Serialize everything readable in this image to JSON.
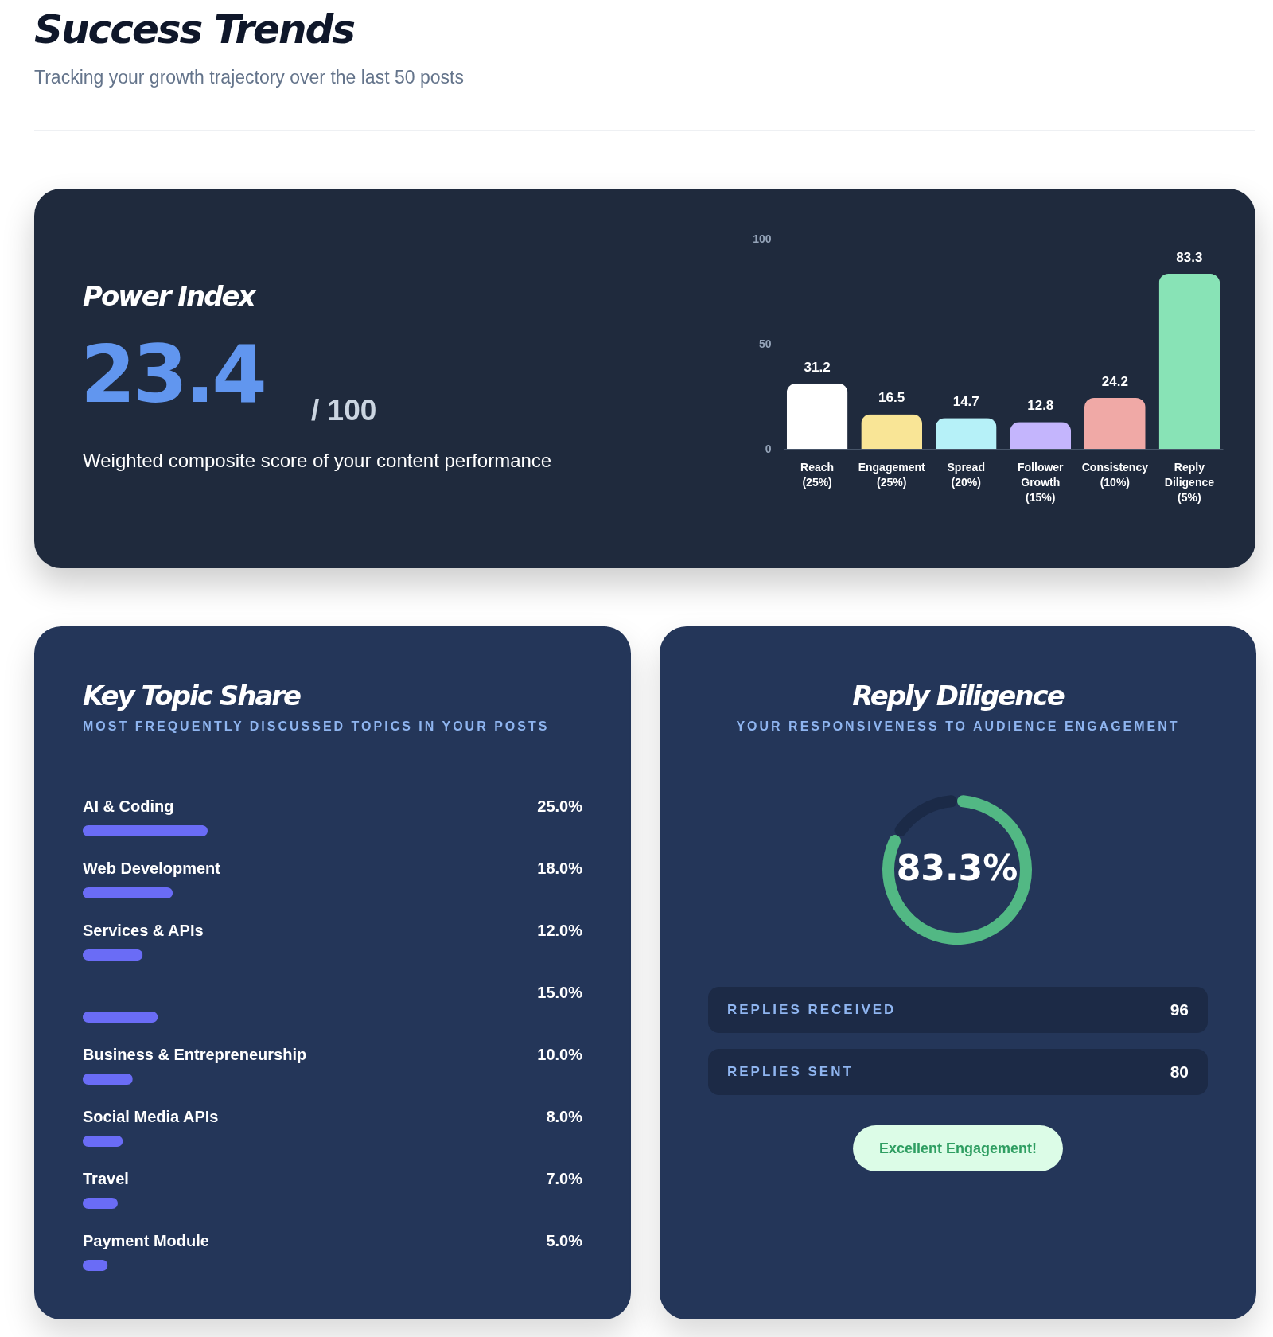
{
  "chart_data": [
    {
      "type": "other",
      "title": "Success Trends",
      "subtitle": "Tracking your growth trajectory over the last 50 posts"
    },
    {
      "type": "other",
      "title": "Power Index",
      "annotations": [
        "23.4",
        "/ 100",
        "Weighted composite score of your content performance"
      ]
    },
    {
      "type": "bar",
      "categories": [
        "Reach (25%)",
        "Engagement (25%)",
        "Spread (20%)",
        "Follower Growth (15%)",
        "Consistency (10%)",
        "Reply Diligence (5%)"
      ],
      "values": [
        31.2,
        16.5,
        14.7,
        12.8,
        24.2,
        83.3
      ],
      "colors": [
        "#ffffff",
        "#f9e596",
        "#b6f1f8",
        "#c4b5fd",
        "#f0a9a6",
        "#88e3b6"
      ],
      "ylim": [
        0,
        100
      ],
      "yticks": [
        0,
        50,
        100
      ],
      "data_labels": true
    },
    {
      "type": "bar",
      "orientation": "horizontal",
      "title": "Key Topic Share",
      "subtitle": "MOST FREQUENTLY DISCUSSED TOPICS IN YOUR POSTS",
      "categories": [
        "AI & Coding",
        "Web Development",
        "Services & APIs",
        null,
        "Business & Entrepreneurship",
        "Social Media APIs",
        "Travel",
        "Payment Module"
      ],
      "values": [
        25,
        18,
        12,
        15,
        10,
        8,
        7,
        5
      ],
      "value_labels": [
        "25.0%",
        "18.0%",
        "12.0%",
        "15.0%",
        "10.0%",
        "8.0%",
        "7.0%",
        "5.0%"
      ],
      "color": "#6a6cf6"
    },
    {
      "type": "donut",
      "title": "Reply Diligence",
      "subtitle": "YOUR RESPONSIVENESS TO AUDIENCE ENGAGEMENT",
      "categories": [
        null,
        null
      ],
      "values": [
        83.3,
        16.7
      ],
      "colors": [
        "#52b884",
        "#1b2a47"
      ],
      "value_labels": [
        "83.3%",
        null
      ],
      "annotations": [
        "REPLIES RECEIVED",
        "96",
        "REPLIES SENT",
        "80",
        "Excellent Engagement!"
      ]
    }
  ]
}
